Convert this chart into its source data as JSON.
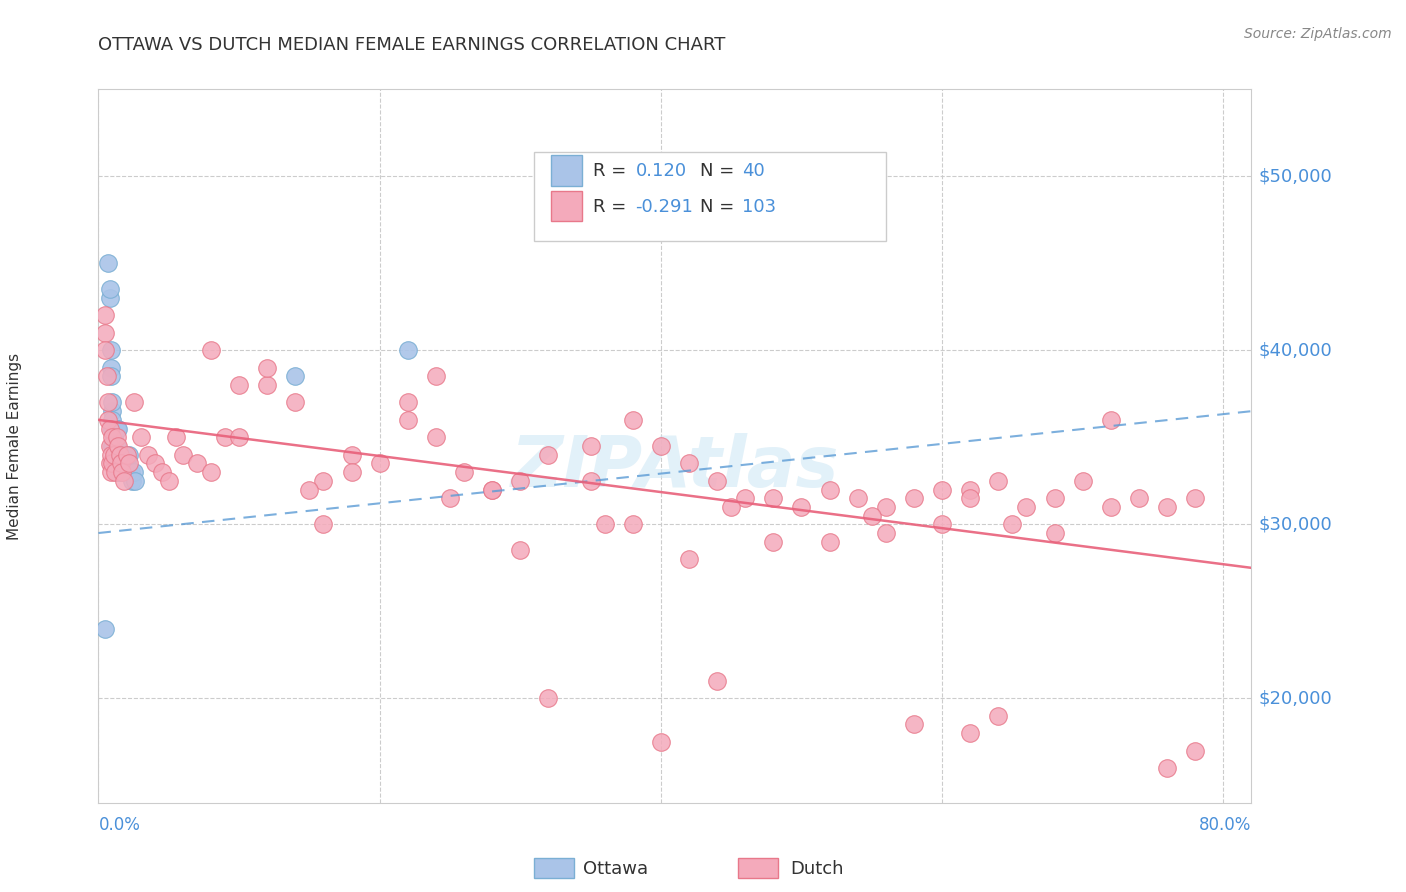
{
  "title": "OTTAWA VS DUTCH MEDIAN FEMALE EARNINGS CORRELATION CHART",
  "source": "Source: ZipAtlas.com",
  "ylabel": "Median Female Earnings",
  "y_ticks": [
    20000,
    30000,
    40000,
    50000
  ],
  "y_tick_labels": [
    "$20,000",
    "$30,000",
    "$40,000",
    "$50,000"
  ],
  "y_min": 14000,
  "y_max": 55000,
  "x_min": 0.0,
  "x_max": 0.82,
  "ottawa_color": "#aac4e8",
  "ottawa_edge_color": "#7bafd4",
  "dutch_color": "#f4aabb",
  "dutch_edge_color": "#e8788a",
  "trend_ottawa_color": "#5b9bd5",
  "trend_dutch_color": "#e8607a",
  "watermark_color": "#d0e8f5",
  "background_color": "#ffffff",
  "grid_color": "#cccccc",
  "title_color": "#333333",
  "label_color": "#4a90d9",
  "text_color": "#333333",
  "source_color": "#888888",
  "ottawa_trendline_x": [
    0.0,
    0.82
  ],
  "ottawa_trendline_y": [
    29500,
    36500
  ],
  "dutch_trendline_x": [
    0.0,
    0.82
  ],
  "dutch_trendline_y": [
    36000,
    27500
  ],
  "ottawa_points_x": [
    0.005,
    0.007,
    0.008,
    0.008,
    0.009,
    0.009,
    0.009,
    0.01,
    0.01,
    0.01,
    0.01,
    0.01,
    0.011,
    0.011,
    0.012,
    0.013,
    0.013,
    0.013,
    0.013,
    0.014,
    0.014,
    0.015,
    0.015,
    0.016,
    0.016,
    0.017,
    0.017,
    0.018,
    0.018,
    0.019,
    0.019,
    0.02,
    0.021,
    0.022,
    0.023,
    0.024,
    0.025,
    0.026,
    0.14,
    0.22
  ],
  "ottawa_points_y": [
    24000,
    45000,
    43000,
    43500,
    39000,
    40000,
    38500,
    36500,
    37000,
    36000,
    35500,
    34500,
    35000,
    34000,
    33500,
    35500,
    34500,
    34000,
    33000,
    35500,
    34000,
    33500,
    33000,
    34000,
    33000,
    34000,
    33500,
    34000,
    33500,
    34000,
    33000,
    33500,
    33000,
    34000,
    33000,
    32500,
    33000,
    32500,
    38500,
    40000
  ],
  "dutch_points_x": [
    0.005,
    0.005,
    0.005,
    0.006,
    0.007,
    0.007,
    0.008,
    0.008,
    0.008,
    0.009,
    0.009,
    0.01,
    0.01,
    0.011,
    0.012,
    0.013,
    0.014,
    0.015,
    0.016,
    0.017,
    0.018,
    0.02,
    0.022,
    0.025,
    0.03,
    0.035,
    0.04,
    0.045,
    0.05,
    0.055,
    0.06,
    0.07,
    0.08,
    0.09,
    0.1,
    0.12,
    0.14,
    0.16,
    0.18,
    0.2,
    0.22,
    0.24,
    0.26,
    0.28,
    0.3,
    0.32,
    0.35,
    0.38,
    0.4,
    0.42,
    0.44,
    0.46,
    0.48,
    0.5,
    0.52,
    0.54,
    0.56,
    0.58,
    0.6,
    0.62,
    0.64,
    0.66,
    0.68,
    0.7,
    0.72,
    0.74,
    0.76,
    0.78,
    0.15,
    0.25,
    0.35,
    0.45,
    0.55,
    0.65,
    0.12,
    0.38,
    0.62,
    0.08,
    0.28,
    0.52,
    0.18,
    0.42,
    0.68,
    0.1,
    0.3,
    0.6,
    0.22,
    0.48,
    0.72,
    0.16,
    0.36,
    0.56,
    0.24,
    0.44,
    0.64,
    0.32,
    0.62,
    0.78,
    0.4,
    0.58,
    0.76
  ],
  "dutch_points_y": [
    42000,
    41000,
    40000,
    38500,
    37000,
    36000,
    35500,
    34500,
    33500,
    34000,
    33000,
    35000,
    33500,
    34000,
    33000,
    35000,
    34500,
    34000,
    33500,
    33000,
    32500,
    34000,
    33500,
    37000,
    35000,
    34000,
    33500,
    33000,
    32500,
    35000,
    34000,
    33500,
    33000,
    35000,
    35000,
    38000,
    37000,
    32500,
    34000,
    33500,
    37000,
    35000,
    33000,
    32000,
    32500,
    34000,
    34500,
    36000,
    34500,
    33500,
    32500,
    31500,
    31500,
    31000,
    32000,
    31500,
    31000,
    31500,
    32000,
    32000,
    32500,
    31000,
    31500,
    32500,
    31000,
    31500,
    31000,
    31500,
    32000,
    31500,
    32500,
    31000,
    30500,
    30000,
    39000,
    30000,
    31500,
    40000,
    32000,
    29000,
    33000,
    28000,
    29500,
    38000,
    28500,
    30000,
    36000,
    29000,
    36000,
    30000,
    30000,
    29500,
    38500,
    21000,
    19000,
    20000,
    18000,
    17000,
    17500,
    18500,
    16000
  ]
}
